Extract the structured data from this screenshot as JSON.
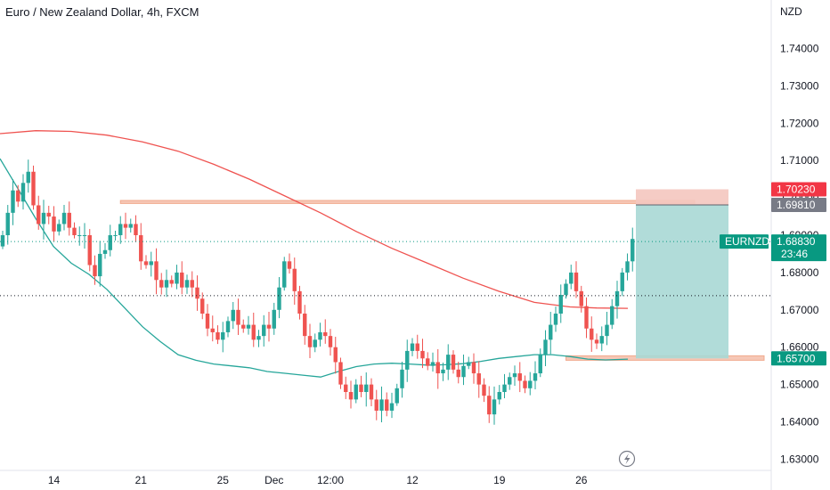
{
  "header": {
    "title": "Euro / New Zealand Dollar, 4h, FXCM"
  },
  "colors": {
    "up": "#26a69a",
    "down": "#ef5350",
    "ma_fast": "#26a69a",
    "ma_slow": "#ef5350",
    "zone": "#f6c7b6",
    "zone_border": "#f0a98c",
    "target_fill": "#a9d8d5",
    "stop_fill": "#f4c7bf",
    "last_price_tag": "#089981",
    "entry_tag": "#787b86",
    "stop_tag": "#f23645",
    "target_tag": "#089981"
  },
  "chart_data": {
    "type": "candlestick",
    "symbol": "EURNZD",
    "currency_label": "NZD",
    "y_ticks": [
      "1.74000",
      "1.73000",
      "1.72000",
      "1.71000",
      "1.70000",
      "1.69000",
      "1.68000",
      "1.67000",
      "1.66000",
      "1.65000",
      "1.64000",
      "1.63000"
    ],
    "ylim": [
      1.627,
      1.753
    ],
    "x_ticks": [
      {
        "label": "14",
        "index": 10
      },
      {
        "label": "21",
        "index": 27
      },
      {
        "label": "25",
        "index": 43
      },
      {
        "label": "Dec",
        "index": 53
      },
      {
        "label": "12:00",
        "index": 64
      },
      {
        "label": "12",
        "index": 80
      },
      {
        "label": "19",
        "index": 97
      },
      {
        "label": "26",
        "index": 113
      }
    ],
    "candle_count_visible": 124,
    "closes": [
      1.69,
      1.696,
      1.702,
      1.699,
      1.704,
      1.707,
      1.698,
      1.693,
      1.696,
      1.695,
      1.691,
      1.693,
      1.696,
      1.692,
      1.69,
      1.69,
      1.69,
      1.682,
      1.679,
      1.685,
      1.686,
      1.69,
      1.69,
      1.693,
      1.692,
      1.693,
      1.69,
      1.683,
      1.682,
      1.683,
      1.678,
      1.676,
      1.678,
      1.677,
      1.68,
      1.676,
      1.678,
      1.676,
      1.673,
      1.669,
      1.665,
      1.664,
      1.662,
      1.664,
      1.667,
      1.67,
      1.666,
      1.665,
      1.666,
      1.662,
      1.663,
      1.666,
      1.665,
      1.67,
      1.676,
      1.683,
      1.681,
      1.675,
      1.669,
      1.663,
      1.66,
      1.662,
      1.664,
      1.663,
      1.66,
      1.656,
      1.65,
      1.648,
      1.646,
      1.65,
      1.648,
      1.65,
      1.646,
      1.643,
      1.646,
      1.643,
      1.645,
      1.649,
      1.654,
      1.659,
      1.661,
      1.659,
      1.657,
      1.655,
      1.656,
      1.653,
      1.654,
      1.658,
      1.654,
      1.652,
      1.655,
      1.656,
      1.653,
      1.65,
      1.647,
      1.642,
      1.646,
      1.648,
      1.65,
      1.652,
      1.653,
      1.651,
      1.649,
      1.651,
      1.653,
      1.658,
      1.662,
      1.666,
      1.669,
      1.674,
      1.677,
      1.68,
      1.675,
      1.671,
      1.665,
      1.662,
      1.661,
      1.663,
      1.666,
      1.671,
      1.675,
      1.68,
      1.683,
      1.689
    ],
    "ma_fast_series": [
      [
        0,
        1.7105
      ],
      [
        20,
        1.7025
      ],
      [
        40,
        1.6945
      ],
      [
        60,
        1.687
      ],
      [
        80,
        1.6825
      ],
      [
        100,
        1.6795
      ],
      [
        120,
        1.6755
      ],
      [
        140,
        1.6705
      ],
      [
        160,
        1.6655
      ],
      [
        180,
        1.6615
      ],
      [
        200,
        1.658
      ],
      [
        220,
        1.6565
      ],
      [
        240,
        1.6555
      ],
      [
        260,
        1.655
      ],
      [
        280,
        1.6545
      ],
      [
        300,
        1.6535
      ],
      [
        320,
        1.653
      ],
      [
        340,
        1.6525
      ],
      [
        360,
        1.652
      ],
      [
        380,
        1.6535
      ],
      [
        400,
        1.6548
      ],
      [
        420,
        1.6555
      ],
      [
        440,
        1.6557
      ],
      [
        460,
        1.6555
      ],
      [
        480,
        1.6552
      ],
      [
        500,
        1.6553
      ],
      [
        520,
        1.6556
      ],
      [
        540,
        1.6562
      ],
      [
        560,
        1.657
      ],
      [
        580,
        1.6575
      ],
      [
        600,
        1.658
      ],
      [
        620,
        1.658
      ],
      [
        640,
        1.6575
      ],
      [
        660,
        1.6568
      ],
      [
        680,
        1.6566
      ],
      [
        705,
        1.6568
      ]
    ],
    "ma_slow_series": [
      [
        0,
        1.7172
      ],
      [
        40,
        1.718
      ],
      [
        80,
        1.7178
      ],
      [
        120,
        1.7168
      ],
      [
        160,
        1.715
      ],
      [
        200,
        1.7125
      ],
      [
        240,
        1.709
      ],
      [
        280,
        1.705
      ],
      [
        320,
        1.7005
      ],
      [
        360,
        1.696
      ],
      [
        400,
        1.691
      ],
      [
        440,
        1.6865
      ],
      [
        480,
        1.6825
      ],
      [
        520,
        1.6785
      ],
      [
        560,
        1.675
      ],
      [
        600,
        1.672
      ],
      [
        640,
        1.6708
      ],
      [
        670,
        1.6705
      ],
      [
        705,
        1.6704
      ]
    ],
    "resistance_zone": [
      1.6985,
      1.6993
    ],
    "support_zone": [
      1.6565,
      1.6577
    ],
    "position": {
      "type": "short",
      "entry": 1.6981,
      "stop": 1.7023,
      "target": 1.657
    },
    "last_price": 1.6883,
    "last_price_countdown": "23:46",
    "dotted_level": 1.6738,
    "labels": {
      "symbol_tag": "EURNZD",
      "last_price": "1.68830",
      "countdown": "23:46",
      "entry": "1.69810",
      "stop": "1.70230",
      "target": "1.65700"
    }
  }
}
